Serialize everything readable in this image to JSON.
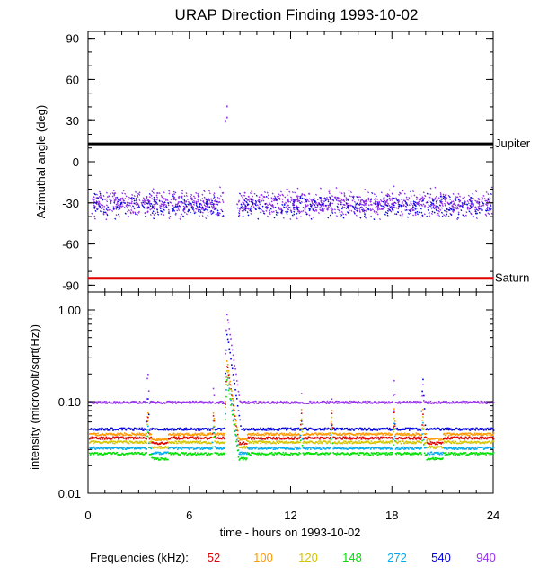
{
  "chart_data": [
    {
      "type": "scatter",
      "title": "URAP Direction Finding  1993-10-02",
      "ylabel": "Azimuthal angle (deg)",
      "xlim": [
        0,
        24
      ],
      "ylim": [
        -95,
        95
      ],
      "yticks": [
        "90",
        "60",
        "30",
        "0",
        "-30",
        "-60",
        "-90"
      ],
      "grid": false,
      "reference_lines": [
        {
          "label": "Jupiter",
          "y": 13,
          "color": "#000000"
        },
        {
          "label": "Saturn",
          "y": -85,
          "color": "#e00000"
        }
      ],
      "series": [
        {
          "values_description_note": "",
          "color": "#8a2be2",
          "band_center": -30,
          "band_halfwidth": 7,
          "x_start": 0.2,
          "x_end": 23.9,
          "gap": [
            8.0,
            8.8
          ]
        },
        {
          "color": "#0000e0",
          "band_center": -32,
          "band_halfwidth": 6,
          "x_start": 0.2,
          "x_end": 23.9,
          "gap": [
            8.0,
            8.8
          ]
        }
      ],
      "outliers": [
        {
          "x": 8.2,
          "y": 41
        },
        {
          "x": 8.2,
          "y": 33
        },
        {
          "x": 8.1,
          "y": 30
        }
      ]
    },
    {
      "type": "line",
      "ylabel": "intensity (microvolt/sqrt(Hz))",
      "xlabel": "time - hours on 1993-10-02",
      "xlim": [
        0,
        24
      ],
      "ylim": [
        0.01,
        1.0
      ],
      "yscale": "log",
      "xticks": [
        "0",
        "6",
        "12",
        "18",
        "24"
      ],
      "yticks": [
        "1.00",
        "0.10",
        "0.01"
      ],
      "grid": false,
      "legend_label": "Frequencies (kHz):",
      "series": [
        {
          "name": "52",
          "color": "#e00000",
          "base": 0.04
        },
        {
          "name": "100",
          "color": "#ff9900",
          "base": 0.044
        },
        {
          "name": "120",
          "color": "#d4c400",
          "base": 0.036
        },
        {
          "name": "148",
          "color": "#00e000",
          "base": 0.027
        },
        {
          "name": "272",
          "color": "#00aaee",
          "base": 0.031
        },
        {
          "name": "540",
          "color": "#0000e0",
          "base": 0.05
        },
        {
          "name": "940",
          "color": "#9933ee",
          "base": 0.098
        }
      ],
      "events": [
        {
          "t": 3.5,
          "amp940": 0.22,
          "amp540": 0.12
        },
        {
          "t": 7.4,
          "amp940": 0.15,
          "amp540": 0.07
        },
        {
          "t": 8.2,
          "amp940": 0.9,
          "amp540": 0.55
        },
        {
          "t": 12.6,
          "amp940": 0.13,
          "amp540": 0.065
        },
        {
          "t": 14.4,
          "amp940": 0.11,
          "amp540": 0.056
        },
        {
          "t": 18.1,
          "amp940": 0.17,
          "amp540": 0.08
        },
        {
          "t": 19.8,
          "amp940": 0.16,
          "amp540": 0.18
        }
      ]
    }
  ]
}
